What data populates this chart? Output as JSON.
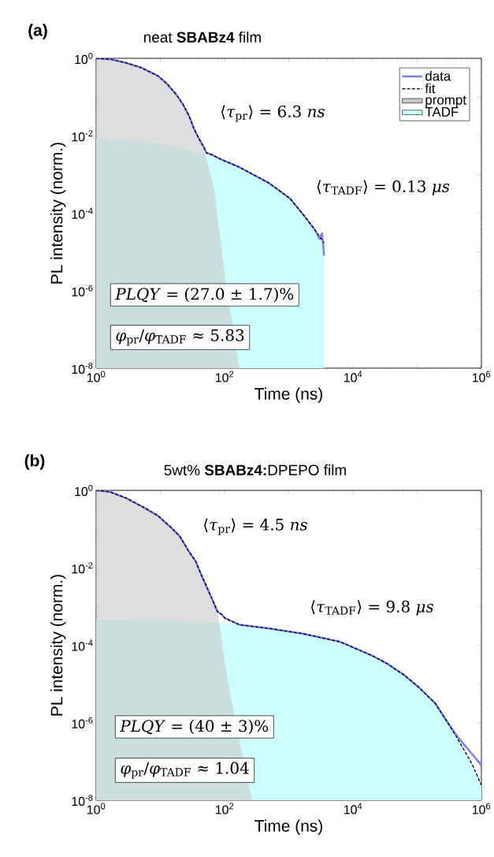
{
  "chart_data": [
    {
      "type": "line",
      "title": "neat **SBABz4** film",
      "xlabel": "Time (ns)",
      "ylabel": "PL intensity (norm.)",
      "log": "xy",
      "xlim": [
        1,
        1000000
      ],
      "ylim": [
        1e-08,
        1
      ],
      "xticks": [
        {
          "value": 1,
          "label": "10$^{0}$"
        },
        {
          "value": 10,
          "label": null
        },
        {
          "value": 100,
          "label": "10$^{2}$"
        },
        {
          "value": 1000,
          "label": null
        },
        {
          "value": 10000,
          "label": "10$^{4}$"
        },
        {
          "value": 100000,
          "label": null
        },
        {
          "value": 1000000,
          "label": "10$^{6}$"
        }
      ],
      "yticks": [
        {
          "value": 1e-08,
          "label": "10$^{-8}$"
        },
        {
          "value": 1e-07,
          "label": null
        },
        {
          "value": 1e-06,
          "label": "10$^{-6}$"
        },
        {
          "value": 1e-05,
          "label": null
        },
        {
          "value": 0.0001,
          "label": "10$^{-4}$"
        },
        {
          "value": 0.001,
          "label": null
        },
        {
          "value": 0.01,
          "label": "10$^{-2}$"
        },
        {
          "value": 0.1,
          "label": null
        },
        {
          "value": 1,
          "label": "10$^{0}$"
        }
      ],
      "legend": "top right",
      "annotations": [
        "(a)",
        "⟨*τ*$_{pr}$⟩ = 6.3 *ns*",
        "⟨*τ*$_{TADF}$⟩ = 0.13 *μs*",
        "*PLQY* = (27.0 ± 1.7)%",
        "*φ*$_{pr}$/*φ*$_{TADF}$ ≈ 5.83"
      ],
      "series": [
        {
          "name": "data",
          "type": "line",
          "color": "#8080ff",
          "line_style": "solid",
          "x": [
            1,
            1.66,
            2.95,
            5.1,
            9.1,
            12.7,
            17.8,
            22.4,
            28.2,
            33,
            39.8,
            47,
            52.5,
            62,
            87,
            170,
            479,
            1047,
            1820,
            2570,
            3000,
            3300,
            3550
          ],
          "values": [
            1,
            0.95,
            0.76,
            0.57,
            0.355,
            0.22,
            0.115,
            0.066,
            0.032,
            0.016,
            0.0085,
            0.0053,
            0.0036,
            0.0033,
            0.0025,
            0.00155,
            0.00062,
            0.00024,
            7.8e-05,
            3.7e-05,
            2.2e-05,
            3e-05,
            8e-06
          ]
        },
        {
          "name": "fit",
          "type": "line",
          "color": "#000000",
          "line_style": "dashed",
          "x": [
            1,
            1.66,
            2.95,
            5.1,
            9.1,
            12.7,
            17.8,
            22.4,
            28.2,
            33,
            39.8,
            47,
            52.5,
            62,
            87,
            170,
            479,
            1047,
            1820,
            2570,
            3550
          ],
          "values": [
            1,
            0.95,
            0.76,
            0.57,
            0.355,
            0.22,
            0.115,
            0.066,
            0.032,
            0.016,
            0.0085,
            0.0053,
            0.0036,
            0.0033,
            0.0025,
            0.00155,
            0.00062,
            0.00024,
            7.8e-05,
            3.7e-05,
            1.7e-05
          ]
        },
        {
          "name": "prompt",
          "type": "area",
          "color": "#c8c8c8",
          "x": [
            1,
            1.66,
            2.95,
            5.1,
            9.1,
            12.7,
            17.8,
            22.4,
            28.2,
            33,
            39.8,
            47,
            69,
            102,
            170
          ],
          "values": [
            1,
            0.95,
            0.76,
            0.57,
            0.355,
            0.22,
            0.115,
            0.066,
            0.032,
            0.016,
            0.0085,
            0.0053,
            0.00042,
            2.2e-06,
            1e-08
          ]
        },
        {
          "name": "TADF",
          "type": "area",
          "color": "#ccffff",
          "x": [
            1,
            10,
            44.7,
            87,
            170,
            479,
            1047,
            1820,
            2570,
            3550
          ],
          "values": [
            0.0085,
            0.0063,
            0.0035,
            0.0025,
            0.00155,
            0.00062,
            0.00024,
            7.8e-05,
            3.7e-05,
            1.7e-05
          ]
        }
      ]
    },
    {
      "type": "line",
      "title": "5wt% **SBABz4:**DPEPO film",
      "xlabel": "Time (ns)",
      "ylabel": "PL intensity (norm.)",
      "log": "xy",
      "xlim": [
        1,
        1000000
      ],
      "ylim": [
        1e-08,
        1
      ],
      "xticks": [
        {
          "value": 1,
          "label": "10$^{0}$"
        },
        {
          "value": 10,
          "label": null
        },
        {
          "value": 100,
          "label": "10$^{2}$"
        },
        {
          "value": 1000,
          "label": null
        },
        {
          "value": 10000,
          "label": "10$^{4}$"
        },
        {
          "value": 100000,
          "label": null
        },
        {
          "value": 1000000,
          "label": "10$^{6}$"
        }
      ],
      "yticks": [
        {
          "value": 1e-08,
          "label": "10$^{-8}$"
        },
        {
          "value": 1e-07,
          "label": null
        },
        {
          "value": 1e-06,
          "label": "10$^{-6}$"
        },
        {
          "value": 1e-05,
          "label": null
        },
        {
          "value": 0.0001,
          "label": "10$^{-4}$"
        },
        {
          "value": 0.001,
          "label": null
        },
        {
          "value": 0.01,
          "label": "10$^{-2}$"
        },
        {
          "value": 0.1,
          "label": null
        },
        {
          "value": 1,
          "label": "10$^{0}$"
        }
      ],
      "annotations": [
        "(b)",
        "⟨*τ*$_{pr}$⟩ = 4.5 *ns*",
        "⟨*τ*$_{TADF}$⟩ = 9.8 *μs*",
        "*PLQY* = (40 ± 3)%",
        "*φ*$_{pr}$/*φ*$_{TADF}$ ≈ 1.04"
      ],
      "series": [
        {
          "type": "line",
          "color": "#8080ff",
          "line_style": "solid",
          "x": [
            1,
            1.66,
            2.95,
            5.1,
            9.1,
            14.2,
            20,
            28,
            35.5,
            44,
            55,
            66,
            77.6,
            91,
            102,
            170,
            479,
            1660,
            6310,
            20000,
            34700,
            61700,
            107000,
            190500,
            295000,
            417000,
            589000,
            1000000
          ],
          "values": [
            1,
            0.91,
            0.63,
            0.39,
            0.224,
            0.116,
            0.066,
            0.026,
            0.0148,
            0.0063,
            0.00275,
            0.0014,
            0.00074,
            0.00062,
            0.0005,
            0.00034,
            0.000275,
            0.0002,
            0.000123,
            5.4e-05,
            3.3e-05,
            1.74e-05,
            8.1e-06,
            3.2e-06,
            1.05e-06,
            4.5e-07,
            2.3e-07,
            8e-08
          ]
        },
        {
          "type": "line",
          "color": "#000000",
          "line_style": "dashed",
          "x": [
            1,
            1.66,
            2.95,
            5.1,
            9.1,
            14.2,
            20,
            28,
            35.5,
            44,
            55,
            66,
            77.6,
            91,
            102,
            170,
            479,
            1660,
            6310,
            20000,
            34700,
            61700,
            107000,
            190500,
            295000,
            417000,
            660000,
            741000,
            1000000
          ],
          "values": [
            1,
            0.91,
            0.63,
            0.39,
            0.224,
            0.116,
            0.066,
            0.026,
            0.0148,
            0.0063,
            0.00275,
            0.0014,
            0.00074,
            0.00062,
            0.0005,
            0.00034,
            0.000275,
            0.0002,
            0.000123,
            5.4e-05,
            3.3e-05,
            1.74e-05,
            8.1e-06,
            3.2e-06,
            1.05e-06,
            4.1e-07,
            1.1e-07,
            7.6e-08,
            2.45e-08
          ]
        },
        {
          "type": "area",
          "color": "#c8c8c8",
          "x": [
            1,
            1.66,
            2.95,
            5.1,
            9.1,
            14.2,
            20,
            28,
            35.5,
            44,
            55,
            66,
            77.6,
            110,
            170,
            269
          ],
          "values": [
            1,
            0.91,
            0.63,
            0.39,
            0.224,
            0.116,
            0.066,
            0.026,
            0.0148,
            0.0063,
            0.00275,
            0.0014,
            0.00074,
            1.45e-05,
            3.4e-07,
            1e-08
          ]
        },
        {
          "type": "area",
          "color": "#ccffff",
          "x": [
            1,
            9.1,
            77.6,
            170,
            479,
            1660,
            6310,
            20000,
            34700,
            61700,
            107000,
            190500,
            295000,
            417000,
            660000,
            741000,
            1000000
          ],
          "values": [
            0.00046,
            0.00044,
            0.00038,
            0.00034,
            0.000275,
            0.0002,
            0.000123,
            5.4e-05,
            3.3e-05,
            1.74e-05,
            8.1e-06,
            3.2e-06,
            1.05e-06,
            4.1e-07,
            1.1e-07,
            7.6e-08,
            2.45e-08
          ]
        }
      ]
    }
  ]
}
